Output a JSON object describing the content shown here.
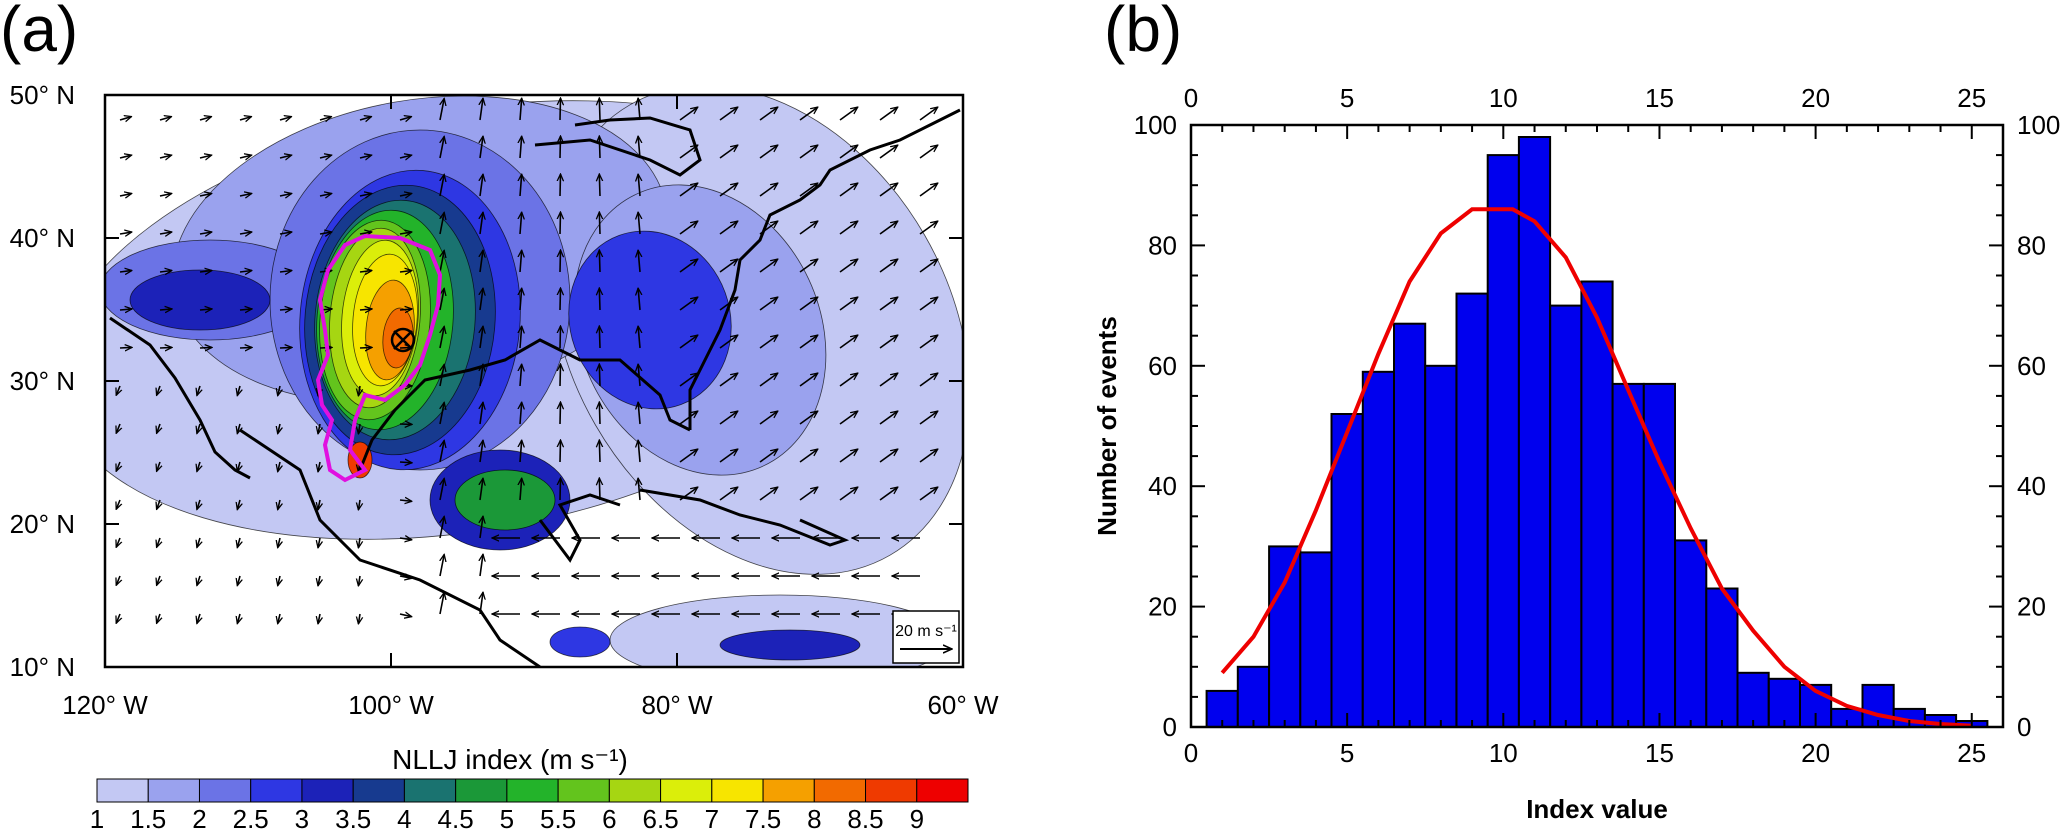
{
  "panels": {
    "a": {
      "label": "(a)",
      "lon_ticks": [
        "120° W",
        "100° W",
        "80° W",
        "60° W"
      ],
      "lat_ticks": [
        "50° N",
        "40° N",
        "30° N",
        "20° N",
        "10° N"
      ],
      "colorbar": {
        "title": "NLLJ index (m s⁻¹)",
        "labels": [
          "1",
          "1.5",
          "2",
          "2.5",
          "3",
          "3.5",
          "4",
          "4.5",
          "5",
          "5.5",
          "6",
          "6.5",
          "7",
          "7.5",
          "8",
          "8.5",
          "9"
        ],
        "colors": [
          "#c3c8f3",
          "#9aa2ee",
          "#6b73e6",
          "#2e37e3",
          "#1c22b8",
          "#173a8f",
          "#1a7370",
          "#1b9838",
          "#23b32a",
          "#63c41d",
          "#a6d612",
          "#dbee0a",
          "#f7e500",
          "#f5a000",
          "#f26a00",
          "#ef3a00",
          "#ee0000"
        ]
      },
      "vector_reference": {
        "label": "20 m s⁻¹"
      }
    },
    "b": {
      "label": "(b)"
    }
  },
  "chart_data": {
    "type": "bar",
    "title": "",
    "xlabel": "Index value",
    "ylabel": "Number of events",
    "xlim": [
      0,
      26
    ],
    "ylim": [
      0,
      100
    ],
    "x_ticks": [
      "0",
      "5",
      "10",
      "15",
      "20",
      "25"
    ],
    "y_ticks": [
      "0",
      "20",
      "40",
      "60",
      "80",
      "100"
    ],
    "bin_width": 1,
    "bin_starts": [
      0.5,
      1.5,
      2.5,
      3.5,
      4.5,
      5.5,
      6.5,
      7.5,
      8.5,
      9.5,
      10.5,
      11.5,
      12.5,
      13.5,
      14.5,
      15.5,
      16.5,
      17.5,
      18.5,
      19.5,
      20.5,
      21.5,
      22.5,
      23.5,
      24.5
    ],
    "values": [
      6,
      10,
      30,
      29,
      52,
      59,
      67,
      60,
      72,
      95,
      98,
      70,
      74,
      57,
      57,
      31,
      23,
      9,
      8,
      7,
      3,
      7,
      3,
      2,
      1
    ],
    "bar_color": "#0000ee",
    "fit_curve": {
      "color": "#ee0000",
      "x": [
        1,
        2,
        3,
        4,
        5,
        6,
        7,
        8,
        9,
        10,
        10.3,
        11,
        12,
        13,
        14,
        15,
        16,
        17,
        18,
        19,
        20,
        21,
        22,
        23,
        24,
        25
      ],
      "y": [
        9,
        15,
        24,
        36,
        49,
        62,
        74,
        82,
        86,
        86,
        86,
        84,
        78,
        68,
        56,
        44,
        33,
        23,
        16,
        10,
        6,
        3.5,
        2,
        1,
        0.5,
        0.2
      ]
    }
  }
}
